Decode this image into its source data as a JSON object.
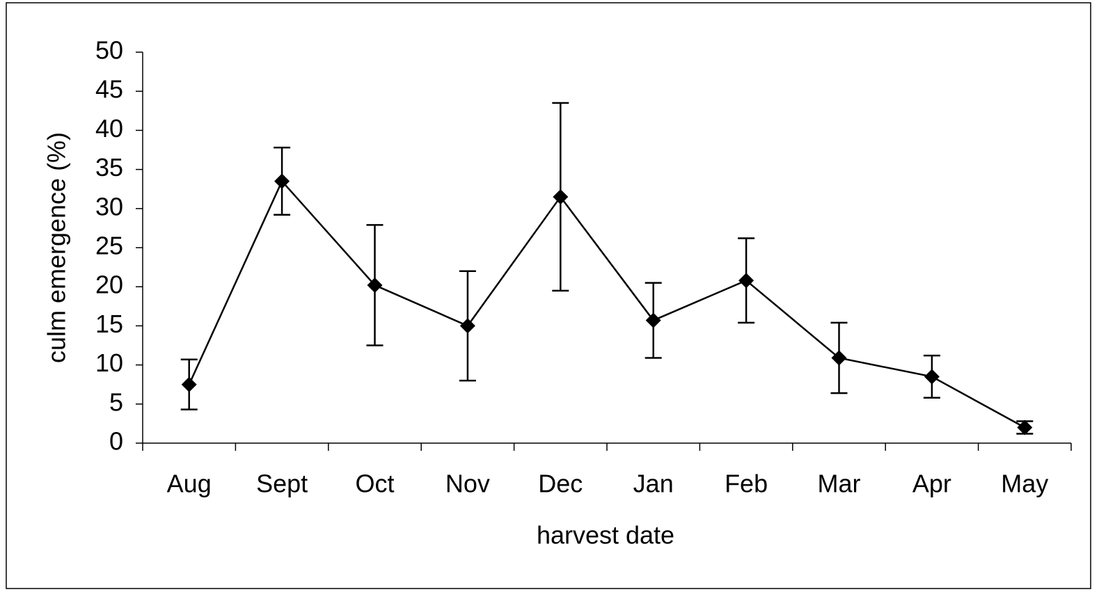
{
  "chart_data": {
    "type": "line",
    "x_label": "harvest date",
    "y_label": "culm emergence (%)",
    "categories": [
      "Aug",
      "Sept",
      "Oct",
      "Nov",
      "Dec",
      "Jan",
      "Feb",
      "Mar",
      "Apr",
      "May"
    ],
    "series": [
      {
        "color": "#000000",
        "values": [
          7.5,
          33.5,
          20.2,
          15.0,
          31.5,
          15.7,
          20.8,
          10.9,
          8.5,
          2.0
        ],
        "errors": [
          3.2,
          4.3,
          7.7,
          7.0,
          12.0,
          4.8,
          5.4,
          4.5,
          2.7,
          0.8
        ]
      }
    ],
    "ylim": [
      0,
      50
    ],
    "yticks": [
      0,
      5,
      10,
      15,
      20,
      25,
      30,
      35,
      40,
      45,
      50
    ],
    "grid": false
  }
}
